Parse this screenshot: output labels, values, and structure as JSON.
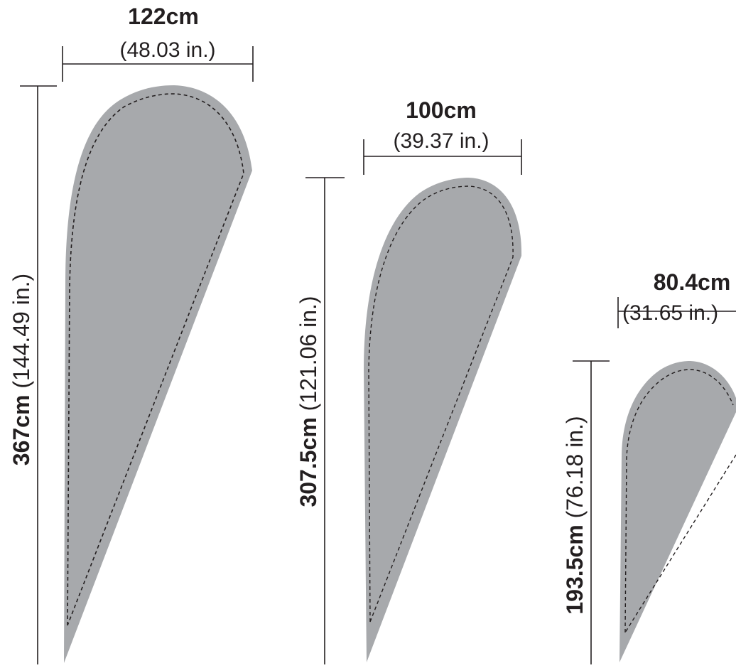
{
  "flags": [
    {
      "width_cm": "122cm",
      "width_in": "(48.03 in.)",
      "height_cm": "367cm",
      "height_in": " (144.49 in.)"
    },
    {
      "width_cm": "100cm",
      "width_in": "(39.37 in.)",
      "height_cm": "307.5cm",
      "height_in": " (121.06 in.)"
    },
    {
      "width_cm": "80.4cm",
      "width_in": "(31.65 in.)",
      "height_cm": "193.5cm",
      "height_in": " (76.18 in.)"
    }
  ],
  "colors": {
    "flag_fill": "#a7a9ac",
    "line": "#231f20",
    "background": "#ffffff"
  }
}
